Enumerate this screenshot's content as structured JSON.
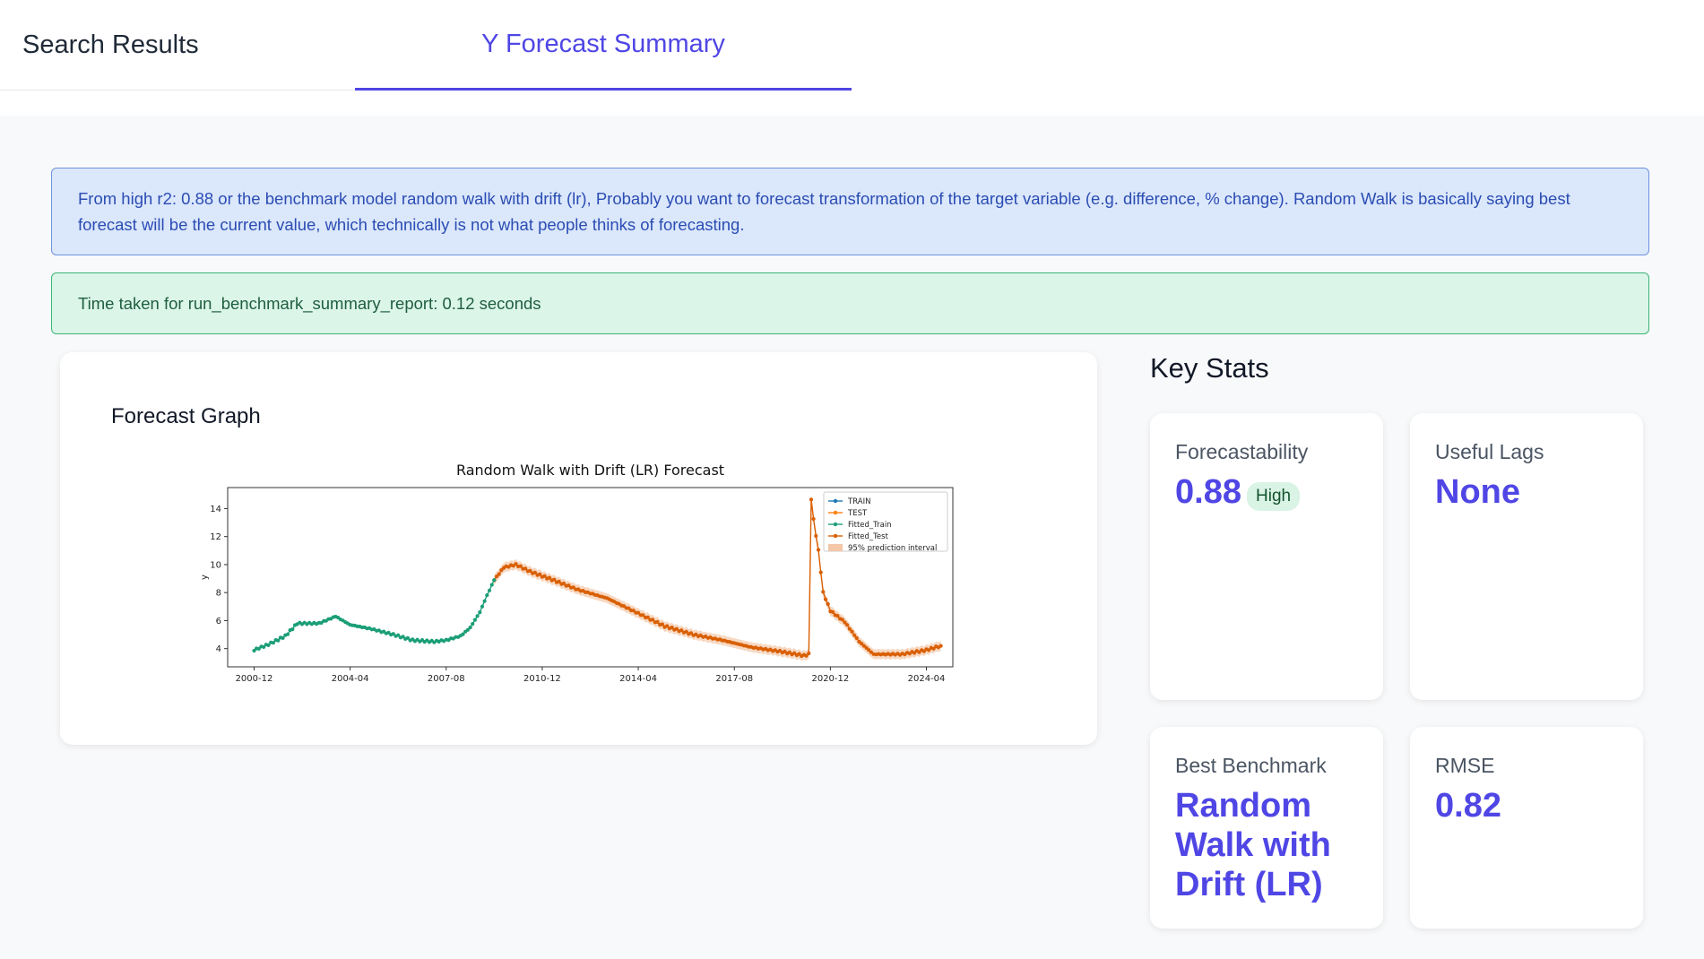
{
  "tabs": {
    "search": "Search Results",
    "forecast": "Y Forecast Summary"
  },
  "alerts": {
    "info": "From high r2: 0.88 or the benchmark model random walk with drift (lr), Probably you want to forecast transformation of the target variable (e.g. difference, % change). Random Walk is basically saying best forecast will be the current value, which technically is not what people thinks of forecasting.",
    "success": "Time taken for run_benchmark_summary_report: 0.12 seconds"
  },
  "graph_card": {
    "title": "Forecast Graph"
  },
  "key_stats": {
    "title": "Key Stats",
    "forecastability": {
      "label": "Forecastability",
      "value": "0.88",
      "badge": "High"
    },
    "useful_lags": {
      "label": "Useful Lags",
      "value": "None"
    },
    "best_benchmark": {
      "label": "Best Benchmark",
      "value": "Random Walk with Drift (LR)"
    },
    "rmse": {
      "label": "RMSE",
      "value": "0.82"
    }
  },
  "colors": {
    "accent": "#4f46e5",
    "train": "#1f77b4",
    "test": "#ff7f0e",
    "fitted_train": "#1b9e77",
    "fitted_test": "#d95f02",
    "interval": "#f4c7a8"
  },
  "chart_data": {
    "type": "line",
    "title": "Random Walk with Drift (LR) Forecast",
    "xlabel": "",
    "ylabel": "y",
    "x_ticks": [
      "2000-12",
      "2004-04",
      "2007-08",
      "2010-12",
      "2014-04",
      "2017-08",
      "2020-12",
      "2024-04"
    ],
    "y_ticks": [
      4,
      6,
      8,
      10,
      12,
      14
    ],
    "xlim": [
      "2000-01",
      "2025-03"
    ],
    "ylim": [
      2.7,
      15.5
    ],
    "legend_position": "top-right",
    "legend": [
      "TRAIN",
      "TEST",
      "Fitted_Train",
      "Fitted_Test",
      "95% prediction interval"
    ],
    "series": [
      {
        "name": "Fitted_Train",
        "points": [
          [
            "2000-12",
            3.9
          ],
          [
            "2001-06",
            4.3
          ],
          [
            "2002-01",
            4.9
          ],
          [
            "2002-06",
            5.8
          ],
          [
            "2003-03",
            5.8
          ],
          [
            "2003-10",
            6.3
          ],
          [
            "2004-04",
            5.7
          ],
          [
            "2005-01",
            5.4
          ],
          [
            "2005-10",
            5.0
          ],
          [
            "2006-06",
            4.6
          ],
          [
            "2007-03",
            4.5
          ],
          [
            "2007-08",
            4.6
          ],
          [
            "2008-02",
            4.9
          ],
          [
            "2008-06",
            5.5
          ],
          [
            "2008-10",
            6.6
          ],
          [
            "2009-01",
            7.8
          ],
          [
            "2009-04",
            8.9
          ]
        ]
      },
      {
        "name": "Fitted_Test",
        "points": [
          [
            "2009-04",
            8.9
          ],
          [
            "2009-08",
            9.8
          ],
          [
            "2010-01",
            10.0
          ],
          [
            "2010-07",
            9.5
          ],
          [
            "2011-03",
            9.0
          ],
          [
            "2012-03",
            8.2
          ],
          [
            "2013-03",
            7.6
          ],
          [
            "2014-03",
            6.6
          ],
          [
            "2015-03",
            5.6
          ],
          [
            "2016-03",
            5.0
          ],
          [
            "2017-03",
            4.6
          ],
          [
            "2018-03",
            4.1
          ],
          [
            "2019-03",
            3.8
          ],
          [
            "2020-01",
            3.5
          ],
          [
            "2020-03",
            3.6
          ],
          [
            "2020-04",
            14.7
          ],
          [
            "2020-05",
            13.2
          ],
          [
            "2020-07",
            11.0
          ],
          [
            "2020-09",
            8.0
          ],
          [
            "2020-12",
            6.7
          ],
          [
            "2021-06",
            5.9
          ],
          [
            "2021-12",
            4.5
          ],
          [
            "2022-06",
            3.6
          ],
          [
            "2023-06",
            3.6
          ],
          [
            "2024-04",
            3.9
          ],
          [
            "2024-10",
            4.2
          ]
        ]
      }
    ]
  }
}
